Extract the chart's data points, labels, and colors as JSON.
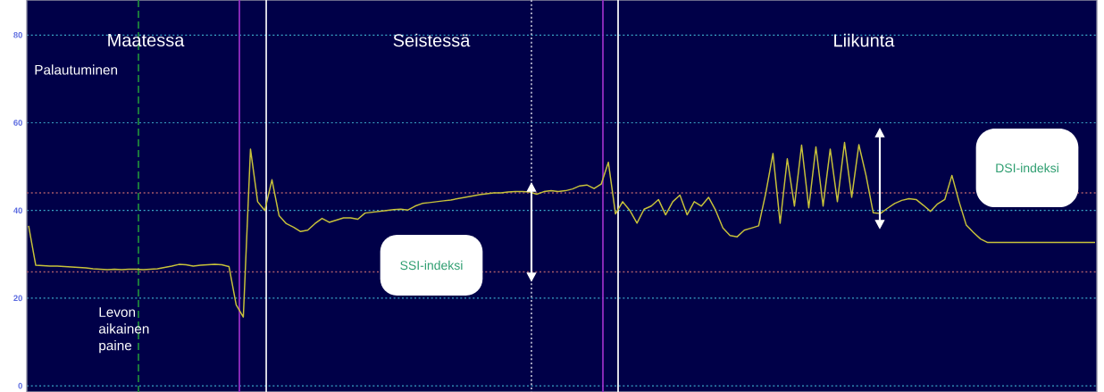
{
  "chart_data": {
    "type": "line",
    "categories": [
      null,
      null,
      null,
      null,
      null,
      null,
      null,
      null,
      null,
      null,
      null,
      null,
      null,
      null,
      null,
      null,
      null,
      null,
      null,
      null,
      null,
      null,
      null,
      null,
      null,
      null,
      null,
      null,
      null,
      null,
      null,
      null,
      null,
      null,
      null,
      null,
      null,
      null,
      null,
      null,
      null,
      null,
      null,
      null,
      null,
      null,
      null,
      null,
      null,
      null,
      null,
      null,
      null,
      null,
      null,
      null,
      null,
      null,
      null,
      null,
      null,
      null,
      null,
      null,
      null,
      null,
      null,
      null,
      null,
      null,
      null,
      null,
      null,
      null,
      null,
      null,
      null,
      null,
      null,
      null,
      null,
      null,
      null,
      null,
      null,
      null,
      null,
      null,
      null,
      null,
      null,
      null,
      null,
      null,
      null,
      null,
      null,
      null,
      null,
      null,
      null,
      null,
      null,
      null,
      null,
      null,
      null,
      null,
      null,
      null,
      null,
      null,
      null,
      null,
      null,
      null,
      null,
      null,
      null,
      null,
      null,
      null,
      null,
      null,
      null,
      null,
      null,
      null,
      null,
      null,
      null,
      null,
      null,
      null,
      null,
      null,
      null,
      null,
      null,
      null,
      null,
      null,
      null,
      null,
      null,
      null,
      null,
      null,
      null,
      null
    ],
    "values": [
      36.5,
      27.5,
      27.4,
      27.3,
      27.3,
      27.2,
      27.1,
      27.0,
      26.9,
      26.7,
      26.6,
      26.5,
      26.6,
      26.5,
      26.6,
      26.6,
      26.5,
      26.6,
      26.7,
      27.0,
      27.3,
      27.7,
      27.6,
      27.3,
      27.5,
      27.6,
      27.7,
      27.6,
      27.2,
      18.5,
      15.7,
      54,
      42,
      40,
      47,
      38.8,
      37,
      36.2,
      35.2,
      35.5,
      37,
      38.2,
      37.3,
      37.8,
      38.3,
      38.3,
      38,
      39.4,
      39.6,
      39.8,
      40,
      40.2,
      40.3,
      40.1,
      41,
      41.6,
      41.8,
      42,
      42.2,
      42.4,
      42.7,
      43,
      43.3,
      43.6,
      43.8,
      44,
      44,
      44.2,
      44.3,
      44.3,
      44.2,
      43.7,
      44.3,
      44.5,
      44.3,
      44.5,
      44.9,
      45.6,
      45.8,
      45,
      46,
      51,
      39.2,
      42,
      40,
      37.1,
      40.3,
      41,
      42.5,
      39,
      42,
      43.5,
      39,
      42,
      41,
      43,
      40,
      36,
      34.3,
      34,
      35.5,
      36,
      36.5,
      44,
      53,
      37.1,
      51.8,
      41,
      54.9,
      40.6,
      54.5,
      41,
      54,
      42,
      55.5,
      43,
      55,
      48,
      39.5,
      39.3,
      40.5,
      41.6,
      42.3,
      42.7,
      42.5,
      41.2,
      39.8,
      41.5,
      42.5,
      48,
      42,
      36.7,
      35,
      33.5,
      32.7,
      32.7,
      32.7,
      32.7,
      32.7,
      32.7,
      32.7,
      32.7,
      32.7,
      32.7,
      32.7,
      32.7,
      32.7,
      32.7,
      32.7,
      32.7
    ],
    "color": "#c8c23a",
    "marker": "none",
    "line_style": "solid",
    "ylim": [
      -1.4,
      88
    ],
    "yticks": [
      0,
      20,
      40,
      60,
      80
    ],
    "grid": "y",
    "ref_lines": [
      {
        "axis": "y",
        "value": 44,
        "color": "#a85a6a",
        "line_style": "dotted"
      },
      {
        "axis": "y",
        "value": 26,
        "color": "#a85a6a",
        "line_style": "dotted"
      }
    ],
    "annotations": [
      "Maatessa",
      "Seistessä",
      "Liikunta",
      "Palautuminen",
      "Levon aikainen paine",
      "SSI-indeksi",
      "DSI-indeksi"
    ]
  }
}
